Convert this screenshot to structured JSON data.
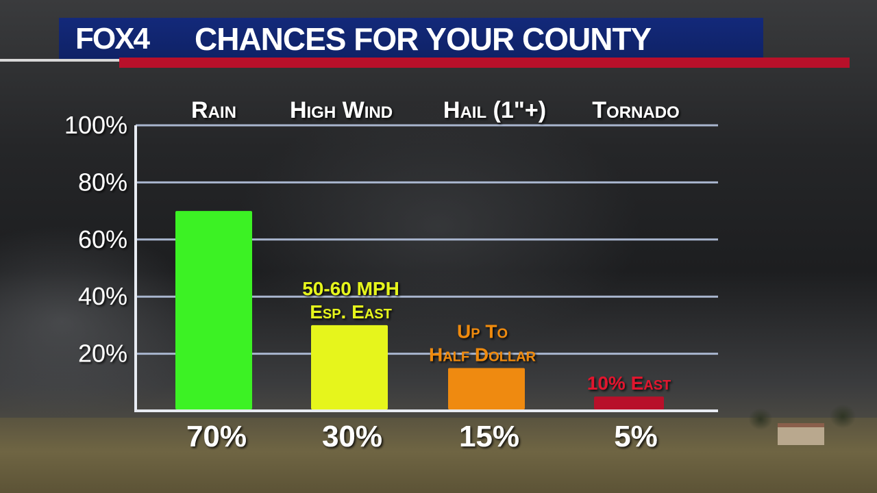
{
  "header": {
    "logo_text": "FOX4",
    "title": "CHANCES FOR YOUR COUNTY"
  },
  "colors": {
    "header_blue": "#13297a",
    "header_red": "#b8102a",
    "rain": "#3cf224",
    "high_wind": "#e6f51c",
    "hail": "#ef8a10",
    "tornado": "#b8102a",
    "grid": "#a9b6cf"
  },
  "chart_data": {
    "type": "bar",
    "categories": [
      "Rain",
      "High Wind",
      "Hail (1\"+)",
      "Tornado"
    ],
    "values": [
      70,
      30,
      15,
      5
    ],
    "value_labels": [
      "70%",
      "30%",
      "15%",
      "5%"
    ],
    "annotations": [
      [],
      [
        "50-60 MPH",
        "Esp. East"
      ],
      [
        "Up To",
        "Half Dollar"
      ],
      [
        "10% East"
      ]
    ],
    "ylim": [
      0,
      100
    ],
    "yticks": [
      20,
      40,
      60,
      80,
      100
    ],
    "ytick_labels": [
      "20%",
      "40%",
      "60%",
      "80%",
      "100%"
    ],
    "grid": true,
    "title": "",
    "xlabel": "",
    "ylabel": ""
  }
}
